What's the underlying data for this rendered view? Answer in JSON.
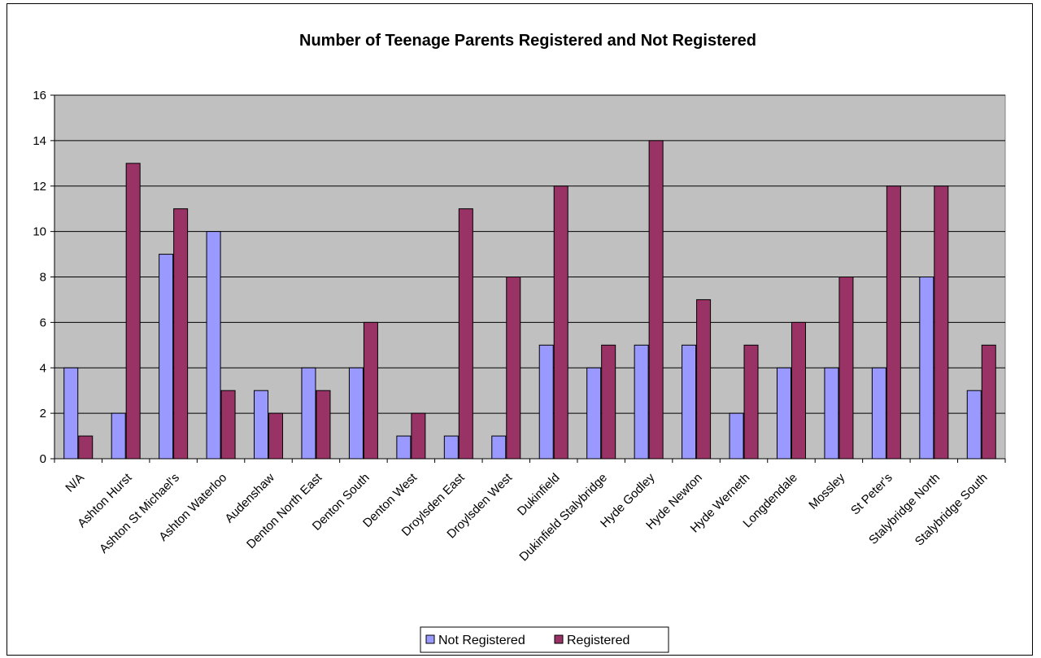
{
  "chart_data": {
    "type": "bar",
    "title": "Number of Teenage Parents Registered and Not Registered",
    "xlabel": "",
    "ylabel": "",
    "ylim": [
      0,
      16
    ],
    "yticks": [
      0,
      2,
      4,
      6,
      8,
      10,
      12,
      14,
      16
    ],
    "grid": true,
    "legend_position": "bottom",
    "categories": [
      "N/A",
      "Ashton Hurst",
      "Ashton St Michael's",
      "Ashton Waterloo",
      "Audenshaw",
      "Denton North East",
      "Denton South",
      "Denton West",
      "Droylsden East",
      "Droylsden West",
      "Dukinfield",
      "Dukinfield Stalybridge",
      "Hyde Godley",
      "Hyde Newton",
      "Hyde Werneth",
      "Longdendale",
      "Mossley",
      "St Peter's",
      "Stalybridge North",
      "Stalybridge South"
    ],
    "series": [
      {
        "name": "Not Registered",
        "color": "#9999ff",
        "values": [
          4,
          2,
          9,
          10,
          3,
          4,
          4,
          1,
          1,
          1,
          5,
          4,
          5,
          5,
          2,
          4,
          4,
          4,
          8,
          3
        ]
      },
      {
        "name": "Registered",
        "color": "#993366",
        "values": [
          1,
          13,
          11,
          3,
          2,
          3,
          6,
          2,
          11,
          8,
          12,
          5,
          14,
          7,
          5,
          6,
          8,
          12,
          12,
          5
        ]
      }
    ],
    "plot_background": "#c0c0c0"
  }
}
